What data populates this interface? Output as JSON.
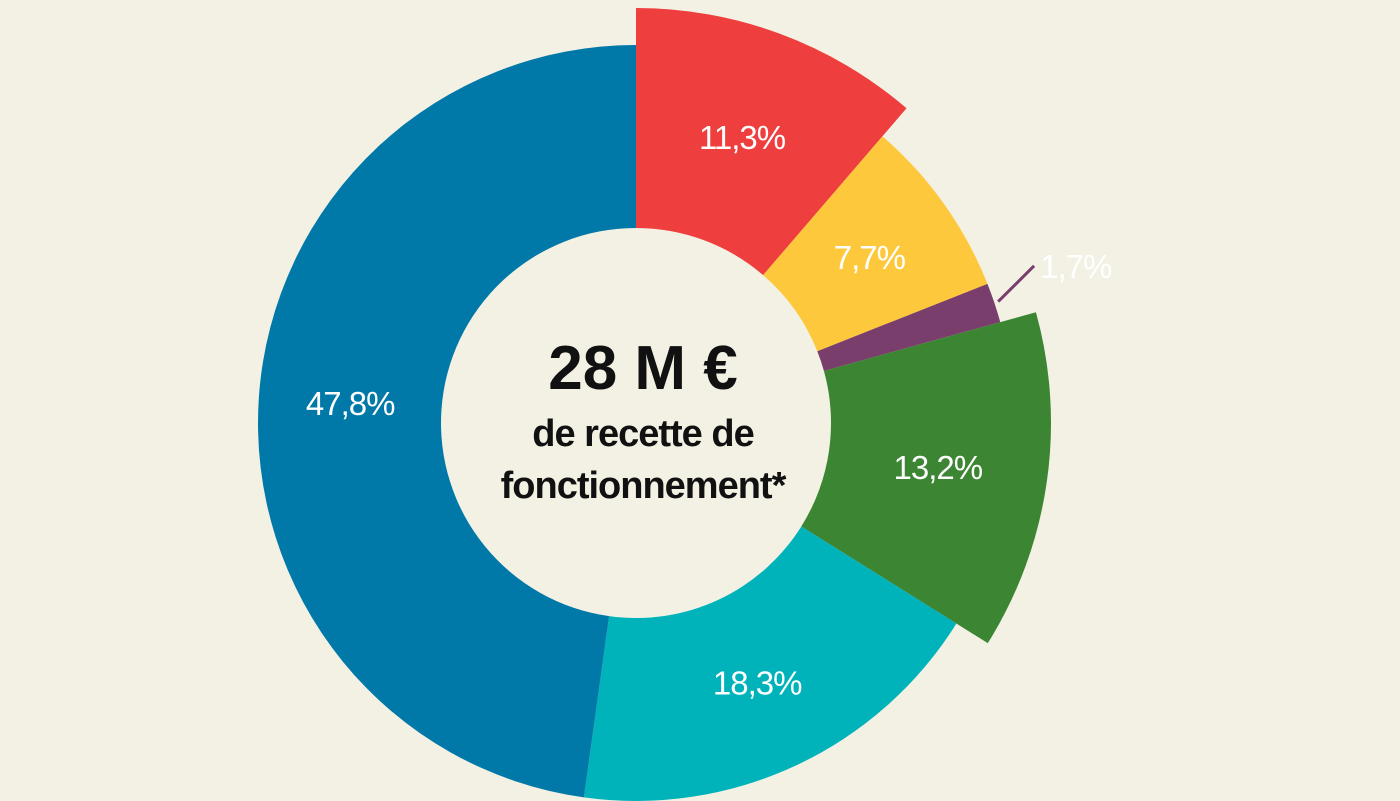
{
  "chart_data": {
    "type": "pie",
    "variant": "donut",
    "center": {
      "amount": "28 M €",
      "line1": "de recette de",
      "line2": "fonctionnement*"
    },
    "slices": [
      {
        "value": 11.3,
        "label": "11,3%",
        "color": "#ef3e3e",
        "exploded": true,
        "label_color": "#ffffff"
      },
      {
        "value": 7.7,
        "label": "7,7%",
        "color": "#fdc83c",
        "exploded": false,
        "label_color": "#ffffff"
      },
      {
        "value": 1.7,
        "label": "1,7%",
        "color": "#7a3e6c",
        "exploded": false,
        "label_color": "#7a3e6c",
        "label_outside": true
      },
      {
        "value": 13.2,
        "label": "13,2%",
        "color": "#3c8532",
        "exploded": true,
        "label_color": "#ffffff"
      },
      {
        "value": 18.3,
        "label": "18,3%",
        "color": "#00b3ba",
        "exploded": false,
        "label_color": "#ffffff"
      },
      {
        "value": 47.8,
        "label": "47,8%",
        "color": "#0078a8",
        "exploded": false,
        "label_color": "#ffffff"
      }
    ]
  }
}
